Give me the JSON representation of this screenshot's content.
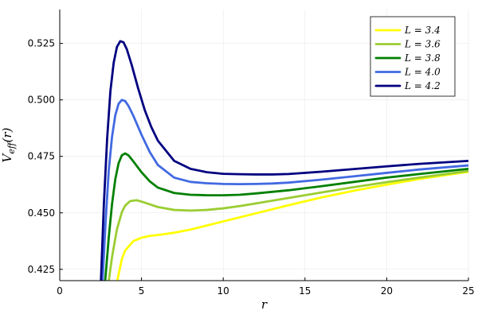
{
  "chart_data": {
    "type": "line",
    "title": "",
    "xlabel": "r",
    "ylabel": "V_eff(r)",
    "xlim": [
      0,
      25
    ],
    "ylim": [
      0.42,
      0.54
    ],
    "xticks": [
      0,
      5,
      10,
      15,
      20,
      25
    ],
    "yticks": [
      0.425,
      0.45,
      0.475,
      0.5,
      0.525
    ],
    "xtick_labels": [
      "0",
      "5",
      "10",
      "15",
      "20",
      "25"
    ],
    "ytick_labels": [
      "0.425",
      "0.450",
      "0.475",
      "0.500",
      "0.525"
    ],
    "grid": true,
    "legend_position": "top-right",
    "series": [
      {
        "name": "L = 3.4",
        "color": "#ffff00",
        "x": [
          3.52,
          3.8,
          4.0,
          4.5,
          5,
          5.5,
          6,
          7,
          8,
          9,
          10,
          11,
          12,
          14,
          16,
          18,
          20,
          22,
          25
        ],
        "y": [
          0.42,
          0.4296,
          0.4333,
          0.4375,
          0.439,
          0.4398,
          0.4402,
          0.4412,
          0.4426,
          0.4444,
          0.4462,
          0.448,
          0.4498,
          0.4534,
          0.4568,
          0.4598,
          0.4625,
          0.465,
          0.4682
        ]
      },
      {
        "name": "L = 3.6",
        "color": "#9acd32",
        "x": [
          3.0,
          3.2,
          3.5,
          3.8,
          4.0,
          4.3,
          4.7,
          5.0,
          5.5,
          6,
          7,
          8,
          9,
          10,
          11,
          12,
          14,
          16,
          18,
          20,
          22,
          25
        ],
        "y": [
          0.42,
          0.4305,
          0.4428,
          0.4503,
          0.4532,
          0.4552,
          0.4556,
          0.455,
          0.4538,
          0.4526,
          0.4513,
          0.451,
          0.4513,
          0.452,
          0.453,
          0.4542,
          0.4566,
          0.459,
          0.4614,
          0.4636,
          0.4656,
          0.4685
        ]
      },
      {
        "name": "L = 3.8",
        "color": "#008000",
        "x": [
          2.78,
          3.0,
          3.2,
          3.4,
          3.6,
          3.8,
          4.0,
          4.2,
          4.5,
          5,
          5.5,
          6,
          7,
          8,
          9,
          10,
          11,
          12,
          14,
          16,
          18,
          20,
          22,
          25
        ],
        "y": [
          0.42,
          0.4393,
          0.454,
          0.465,
          0.472,
          0.4755,
          0.4763,
          0.4755,
          0.4728,
          0.468,
          0.464,
          0.4612,
          0.4588,
          0.458,
          0.4578,
          0.4578,
          0.458,
          0.4586,
          0.46,
          0.4618,
          0.4637,
          0.4656,
          0.4672,
          0.4695
        ]
      },
      {
        "name": "L = 4.0",
        "color": "#4169e1",
        "x": [
          2.62,
          2.8,
          3.0,
          3.2,
          3.4,
          3.6,
          3.8,
          4.0,
          4.2,
          4.5,
          5,
          5.5,
          6,
          7,
          8,
          9,
          10,
          11,
          12,
          13,
          14,
          16,
          18,
          20,
          22,
          25
        ],
        "y": [
          0.42,
          0.4455,
          0.469,
          0.4838,
          0.4933,
          0.4983,
          0.5,
          0.4995,
          0.4974,
          0.493,
          0.4846,
          0.477,
          0.4712,
          0.4656,
          0.4637,
          0.4631,
          0.4628,
          0.4627,
          0.4628,
          0.463,
          0.4634,
          0.4647,
          0.4662,
          0.4677,
          0.4692,
          0.471
        ]
      },
      {
        "name": "L = 4.2",
        "color": "#000080",
        "x": [
          2.52,
          2.7,
          2.9,
          3.1,
          3.3,
          3.5,
          3.7,
          3.9,
          4.1,
          4.4,
          4.8,
          5.2,
          5.6,
          6,
          7,
          8,
          9,
          10,
          11,
          12,
          13,
          14,
          16,
          18,
          20,
          22,
          25
        ],
        "y": [
          0.42,
          0.454,
          0.483,
          0.504,
          0.5165,
          0.5235,
          0.526,
          0.5255,
          0.5225,
          0.5155,
          0.505,
          0.4955,
          0.488,
          0.482,
          0.473,
          0.4695,
          0.468,
          0.4673,
          0.4671,
          0.467,
          0.467,
          0.4672,
          0.4682,
          0.4694,
          0.4706,
          0.4717,
          0.473
        ]
      }
    ]
  }
}
